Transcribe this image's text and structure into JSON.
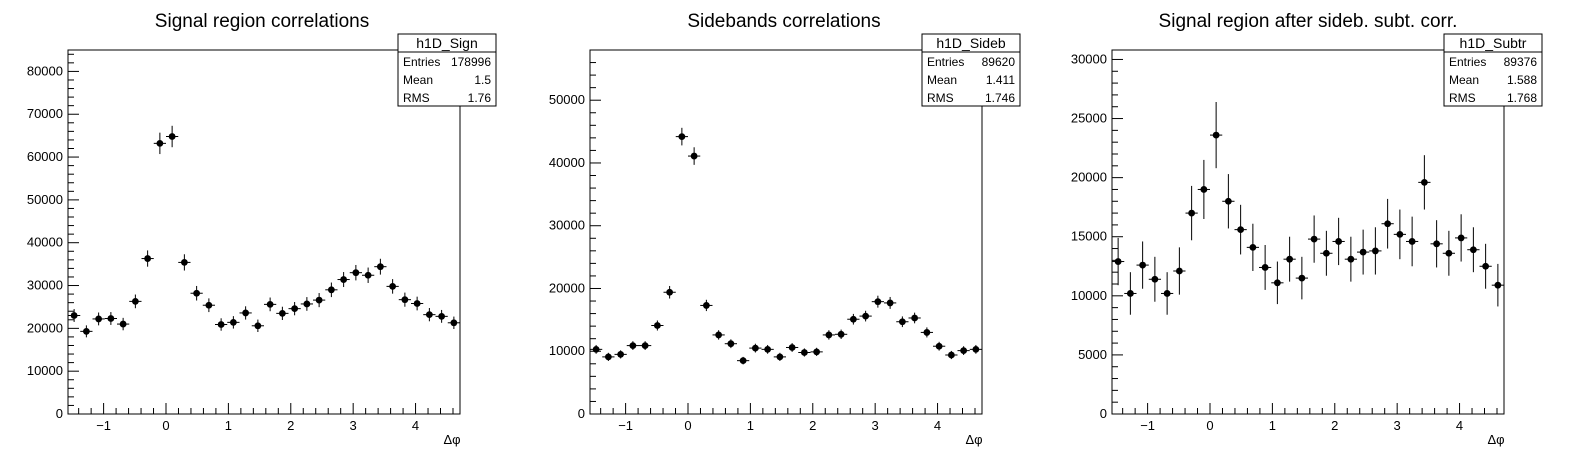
{
  "chart_data": [
    {
      "type": "scatter",
      "title": "Signal region correlations",
      "xlabel": "Δφ",
      "ylabel": "",
      "xlim": [
        -1.5708,
        4.7124
      ],
      "ylim": [
        0,
        85000
      ],
      "xticks": [
        -1,
        0,
        1,
        2,
        3,
        4
      ],
      "xtick_labels": [
        "−1",
        "0",
        "1",
        "2",
        "3",
        "4"
      ],
      "yticks": [
        0,
        10000,
        20000,
        30000,
        40000,
        50000,
        60000,
        70000,
        80000
      ],
      "ytick_labels": [
        "0",
        "10000",
        "20000",
        "30000",
        "40000",
        "50000",
        "60000",
        "70000",
        "80000"
      ],
      "stats": {
        "name": "h1D_Sign",
        "rows": [
          {
            "label": "Entries",
            "value": "178996"
          },
          {
            "label": "Mean",
            "value": "1.5"
          },
          {
            "label": "RMS",
            "value": "1.76"
          }
        ]
      },
      "series": [
        {
          "values": [
            23000,
            19300,
            22200,
            22300,
            21000,
            26300,
            36300,
            63200,
            64800,
            35400,
            28200,
            25400,
            20900,
            21400,
            23600,
            20600,
            25600,
            23500,
            24600,
            25700,
            26600,
            29000,
            31400,
            33000,
            32400,
            34400,
            29800,
            26700,
            25800,
            23200,
            22800,
            21300
          ],
          "errors": [
            1500,
            1400,
            1500,
            1500,
            1450,
            1600,
            1900,
            2500,
            2500,
            1900,
            1700,
            1600,
            1450,
            1450,
            1550,
            1450,
            1600,
            1550,
            1550,
            1600,
            1650,
            1700,
            1750,
            1800,
            1800,
            1850,
            1700,
            1650,
            1600,
            1550,
            1500,
            1450
          ]
        }
      ]
    },
    {
      "type": "scatter",
      "title": "Sidebands correlations",
      "xlabel": "Δφ",
      "ylabel": "",
      "xlim": [
        -1.5708,
        4.7124
      ],
      "ylim": [
        0,
        58000
      ],
      "xticks": [
        -1,
        0,
        1,
        2,
        3,
        4
      ],
      "xtick_labels": [
        "−1",
        "0",
        "1",
        "2",
        "3",
        "4"
      ],
      "yticks": [
        0,
        10000,
        20000,
        30000,
        40000,
        50000
      ],
      "ytick_labels": [
        "0",
        "10000",
        "20000",
        "30000",
        "40000",
        "50000"
      ],
      "stats": {
        "name": "h1D_Sideb",
        "rows": [
          {
            "label": "Entries",
            "value": "89620"
          },
          {
            "label": "Mean",
            "value": "1.411"
          },
          {
            "label": "RMS",
            "value": "1.746"
          }
        ]
      },
      "series": [
        {
          "values": [
            10300,
            9100,
            9500,
            10900,
            10900,
            14100,
            19400,
            44200,
            41100,
            17300,
            12600,
            11200,
            8500,
            10500,
            10300,
            9100,
            10600,
            9800,
            9900,
            12600,
            12700,
            15100,
            15600,
            17900,
            17700,
            14700,
            15300,
            13000,
            10800,
            9400,
            10100,
            10300
          ],
          "errors": [
            700,
            650,
            650,
            700,
            700,
            800,
            1000,
            1400,
            1400,
            900,
            750,
            700,
            600,
            700,
            700,
            650,
            700,
            650,
            650,
            750,
            750,
            850,
            850,
            950,
            950,
            850,
            850,
            800,
            700,
            650,
            700,
            700
          ]
        }
      ]
    },
    {
      "type": "scatter",
      "title": "Signal region after sideb. subt. corr.",
      "xlabel": "Δφ",
      "ylabel": "",
      "xlim": [
        -1.5708,
        4.7124
      ],
      "ylim": [
        0,
        30800
      ],
      "xticks": [
        -1,
        0,
        1,
        2,
        3,
        4
      ],
      "xtick_labels": [
        "−1",
        "0",
        "1",
        "2",
        "3",
        "4"
      ],
      "yticks": [
        0,
        5000,
        10000,
        15000,
        20000,
        25000,
        30000
      ],
      "ytick_labels": [
        "0",
        "5000",
        "10000",
        "15000",
        "20000",
        "25000",
        "30000"
      ],
      "stats": {
        "name": "h1D_Subtr",
        "rows": [
          {
            "label": "Entries",
            "value": "89376"
          },
          {
            "label": "Mean",
            "value": "1.588"
          },
          {
            "label": "RMS",
            "value": "1.768"
          }
        ]
      },
      "series": [
        {
          "values": [
            12900,
            10200,
            12600,
            11400,
            10200,
            12100,
            17000,
            19000,
            23600,
            18000,
            15600,
            14100,
            12400,
            11100,
            13100,
            11500,
            14800,
            13600,
            14600,
            13100,
            13700,
            13800,
            16100,
            15200,
            14600,
            19600,
            14400,
            13600,
            14900,
            13900,
            12500,
            10900
          ],
          "errors": [
            2000,
            1800,
            2000,
            1900,
            1800,
            2000,
            2300,
            2500,
            2800,
            2300,
            2100,
            2000,
            1900,
            1800,
            1900,
            1800,
            2000,
            1900,
            2000,
            1900,
            1900,
            2000,
            2100,
            2100,
            2100,
            2300,
            2000,
            1900,
            2000,
            1900,
            1900,
            1800
          ]
        }
      ]
    }
  ],
  "style": {
    "marker_color": "#000000",
    "axis_color": "#000000",
    "background": "#ffffff"
  }
}
